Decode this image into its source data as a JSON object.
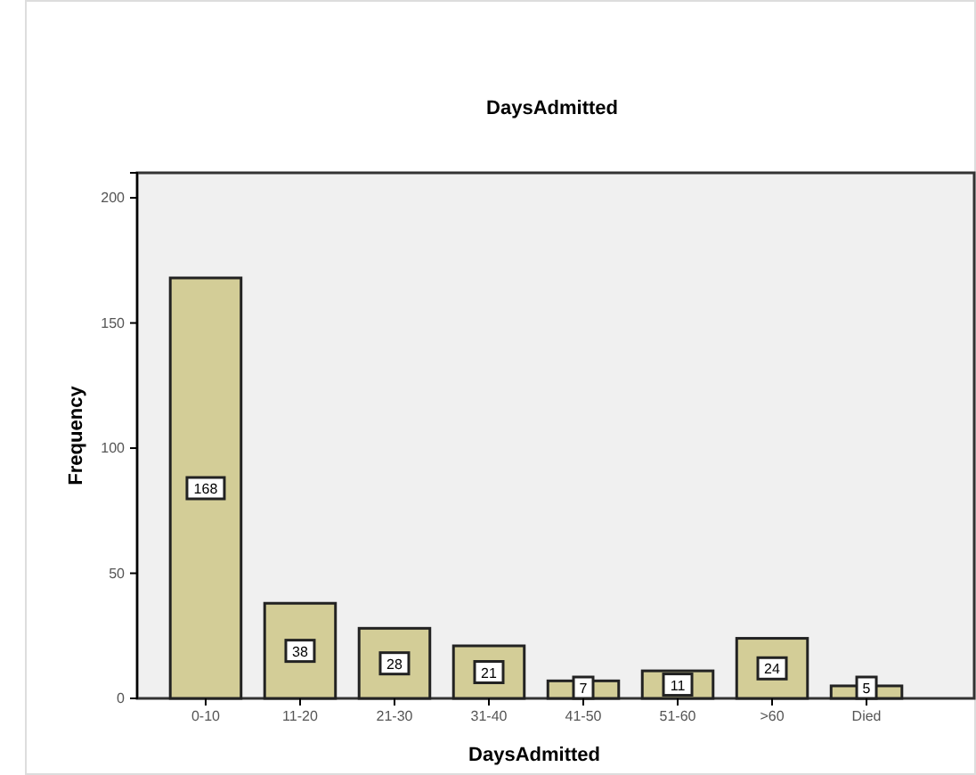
{
  "chart_data": {
    "type": "bar",
    "title": "DaysAdmitted",
    "xlabel": "DaysAdmitted",
    "ylabel": "Frequency",
    "categories": [
      "0-10",
      "11-20",
      "21-30",
      "31-40",
      "41-50",
      "51-60",
      ">60",
      "Died"
    ],
    "values": [
      168,
      38,
      28,
      21,
      7,
      11,
      24,
      5
    ],
    "color": "#d3cd97",
    "ylim": [
      0,
      210
    ],
    "yticks": [
      0,
      50,
      100,
      150,
      200
    ],
    "data_labels": true,
    "grid": false
  }
}
